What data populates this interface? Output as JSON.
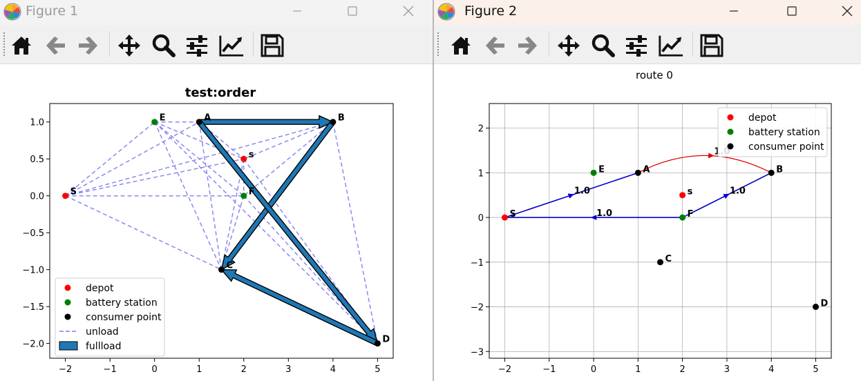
{
  "windows": [
    {
      "title": "Figure 1"
    },
    {
      "title": "Figure 2"
    }
  ],
  "toolbar": {
    "icons": [
      "home-icon",
      "back-arrow-icon",
      "forward-arrow-icon",
      "pan-icon",
      "zoom-icon",
      "subplots-sliders-icon",
      "axes-edit-icon",
      "save-icon"
    ]
  },
  "window_controls": [
    "minimize-icon",
    "maximize-icon",
    "close-icon"
  ],
  "colors": {
    "depot": "#ff0000",
    "battery_station": "#008000",
    "consumer_point": "#000000",
    "unload_line": "#7b7bf0",
    "fullload_face": "#1f77b4",
    "route_blue": "#0000cc",
    "route_red": "#dd0000"
  },
  "chart_data": [
    {
      "type": "scatter",
      "title": "test:order",
      "xlim": [
        -2.35,
        5.35
      ],
      "ylim": [
        -2.2,
        1.25
      ],
      "xticks": [
        -2,
        -1,
        0,
        1,
        2,
        3,
        4,
        5
      ],
      "yticks": [
        1.0,
        0.5,
        0.0,
        -0.5,
        -1.0,
        -1.5,
        -2.0
      ],
      "xtick_labels": [
        "−2",
        "−1",
        "0",
        "1",
        "2",
        "3",
        "4",
        "5"
      ],
      "ytick_labels": [
        "1.0",
        "0.5",
        "0.0",
        "−0.5",
        "−1.0",
        "−1.5",
        "−2.0"
      ],
      "grid": false,
      "legend_position": "lower-left",
      "legend": [
        {
          "label": "depot",
          "kind": "dot",
          "color": "#ff0000"
        },
        {
          "label": "battery station",
          "kind": "dot",
          "color": "#008000"
        },
        {
          "label": "consumer point",
          "kind": "dot",
          "color": "#000000"
        },
        {
          "label": "unload",
          "kind": "dash",
          "color": "#7b7bf0"
        },
        {
          "label": "fullload",
          "kind": "patch",
          "color": "#1f77b4"
        }
      ],
      "points": [
        {
          "label": "S",
          "x": -2,
          "y": 0,
          "color": "#ff0000"
        },
        {
          "label": "s",
          "x": 2,
          "y": 0.5,
          "color": "#ff0000"
        },
        {
          "label": "E",
          "x": 0,
          "y": 1,
          "color": "#008000"
        },
        {
          "label": "F",
          "x": 2,
          "y": 0,
          "color": "#008000"
        },
        {
          "label": "A",
          "x": 1,
          "y": 1,
          "color": "#000000"
        },
        {
          "label": "B",
          "x": 4,
          "y": 1,
          "color": "#000000"
        },
        {
          "label": "C",
          "x": 1.5,
          "y": -1,
          "color": "#000000"
        },
        {
          "label": "D",
          "x": 5,
          "y": -2,
          "color": "#000000"
        }
      ],
      "unload_edges": [
        [
          [
            -2,
            0
          ],
          [
            0,
            1
          ]
        ],
        [
          [
            -2,
            0
          ],
          [
            1,
            1
          ]
        ],
        [
          [
            -2,
            0
          ],
          [
            4,
            1
          ]
        ],
        [
          [
            -2,
            0
          ],
          [
            2,
            0.5
          ]
        ],
        [
          [
            -2,
            0
          ],
          [
            2,
            0
          ]
        ],
        [
          [
            -2,
            0
          ],
          [
            1.5,
            -1
          ]
        ],
        [
          [
            0,
            1
          ],
          [
            1,
            1
          ]
        ],
        [
          [
            0,
            1
          ],
          [
            2,
            0.5
          ]
        ],
        [
          [
            0,
            1
          ],
          [
            2,
            0
          ]
        ],
        [
          [
            0,
            1
          ],
          [
            1.5,
            -1
          ]
        ],
        [
          [
            0,
            1
          ],
          [
            5,
            -2
          ]
        ],
        [
          [
            1,
            1
          ],
          [
            2,
            0.5
          ]
        ],
        [
          [
            1,
            1
          ],
          [
            1.5,
            -1
          ]
        ],
        [
          [
            1,
            1
          ],
          [
            5,
            -2
          ]
        ],
        [
          [
            4,
            1
          ],
          [
            2,
            0.5
          ]
        ],
        [
          [
            4,
            1
          ],
          [
            2,
            0
          ]
        ],
        [
          [
            4,
            1
          ],
          [
            1.5,
            -1
          ]
        ],
        [
          [
            4,
            1
          ],
          [
            5,
            -2
          ]
        ],
        [
          [
            2,
            0.5
          ],
          [
            1.5,
            -1
          ]
        ],
        [
          [
            2,
            0.5
          ],
          [
            5,
            -2
          ]
        ],
        [
          [
            2,
            0
          ],
          [
            1.5,
            -1
          ]
        ],
        [
          [
            2,
            0
          ],
          [
            5,
            -2
          ]
        ],
        [
          [
            2,
            0.5
          ],
          [
            2,
            0
          ]
        ]
      ],
      "fullload_arrows": [
        {
          "from": [
            1,
            1
          ],
          "to": [
            4,
            1
          ]
        },
        {
          "from": [
            4,
            1
          ],
          "to": [
            1.5,
            -1
          ]
        },
        {
          "from": [
            1,
            1
          ],
          "to": [
            5,
            -2
          ]
        },
        {
          "from": [
            5,
            -2
          ],
          "to": [
            1.5,
            -1
          ]
        }
      ]
    },
    {
      "type": "scatter",
      "title": "route 0",
      "xlim": [
        -2.35,
        5.35
      ],
      "ylim": [
        -3.15,
        2.55
      ],
      "xticks": [
        -2,
        -1,
        0,
        1,
        2,
        3,
        4,
        5
      ],
      "yticks": [
        2,
        1,
        0,
        -1,
        -2,
        -3
      ],
      "xtick_labels": [
        "−2",
        "−1",
        "0",
        "1",
        "2",
        "3",
        "4",
        "5"
      ],
      "ytick_labels": [
        "2",
        "1",
        "0",
        "−1",
        "−2",
        "−3"
      ],
      "grid": true,
      "legend_position": "upper-right",
      "legend": [
        {
          "label": "depot",
          "kind": "dot",
          "color": "#ff0000"
        },
        {
          "label": "battery station",
          "kind": "dot",
          "color": "#008000"
        },
        {
          "label": "consumer point",
          "kind": "dot",
          "color": "#000000"
        }
      ],
      "points": [
        {
          "label": "S",
          "x": -2,
          "y": 0,
          "color": "#ff0000"
        },
        {
          "label": "s",
          "x": 2,
          "y": 0.5,
          "color": "#ff0000"
        },
        {
          "label": "E",
          "x": 0,
          "y": 1,
          "color": "#008000"
        },
        {
          "label": "F",
          "x": 2,
          "y": 0,
          "color": "#008000"
        },
        {
          "label": "A",
          "x": 1,
          "y": 1,
          "color": "#000000"
        },
        {
          "label": "B",
          "x": 4,
          "y": 1,
          "color": "#000000"
        },
        {
          "label": "C",
          "x": 1.5,
          "y": -1,
          "color": "#000000"
        },
        {
          "label": "D",
          "x": 5,
          "y": -2,
          "color": "#000000"
        }
      ],
      "route_edges": [
        {
          "from": [
            -2,
            0
          ],
          "to": [
            1,
            1
          ],
          "value": "1.0",
          "color": "#0000cc",
          "curved": false
        },
        {
          "from": [
            1,
            1
          ],
          "to": [
            4,
            1
          ],
          "value": "1.0",
          "color": "#dd0000",
          "curved": true
        },
        {
          "from": [
            2,
            0
          ],
          "to": [
            4,
            1
          ],
          "value": "1.0",
          "color": "#0000cc",
          "curved": false
        },
        {
          "from": [
            2,
            0
          ],
          "to": [
            -2,
            0
          ],
          "value": "1.0",
          "color": "#0000cc",
          "curved": false
        }
      ]
    }
  ]
}
